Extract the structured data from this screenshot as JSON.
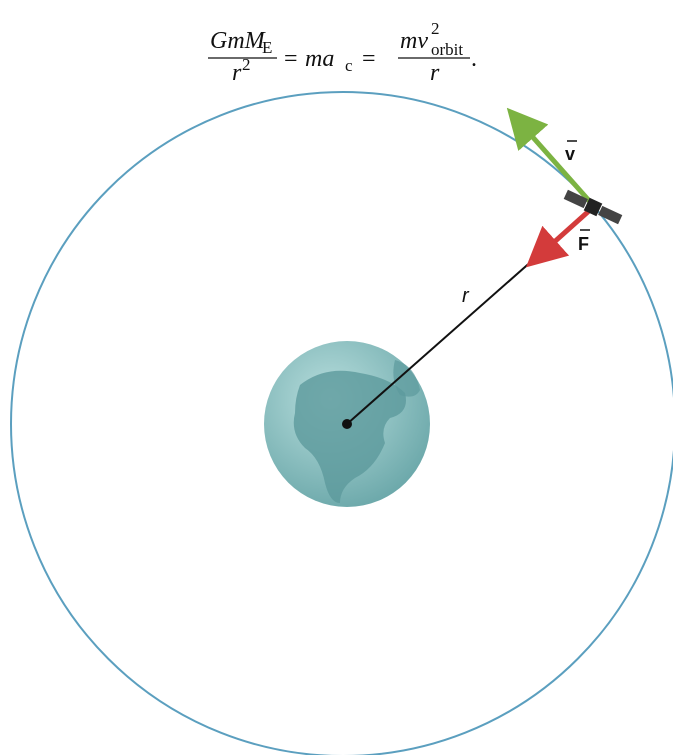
{
  "equation": {
    "lhs_numerator": "GmM",
    "lhs_numerator_sub": "E",
    "lhs_denominator": "r",
    "lhs_denominator_sup": "2",
    "equals_1": "=",
    "middle": "ma",
    "middle_sub": "c",
    "equals_2": "=",
    "rhs_numerator": "mv",
    "rhs_numerator_sup": "2",
    "rhs_numerator_sub": "orbit",
    "rhs_denominator": "r",
    "period": "."
  },
  "labels": {
    "velocity": "v",
    "force": "F",
    "radius": "r"
  }
}
